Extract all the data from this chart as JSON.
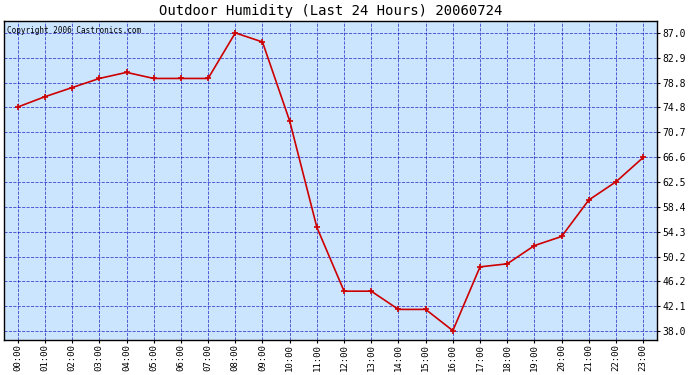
{
  "title": "Outdoor Humidity (Last 24 Hours) 20060724",
  "copyright_text": "Copyright 2006 Castronics.com",
  "x_labels": [
    "00:00",
    "01:00",
    "02:00",
    "03:00",
    "04:00",
    "05:00",
    "06:00",
    "07:00",
    "08:00",
    "09:00",
    "10:00",
    "11:00",
    "12:00",
    "13:00",
    "14:00",
    "15:00",
    "16:00",
    "17:00",
    "18:00",
    "19:00",
    "20:00",
    "21:00",
    "22:00",
    "23:00"
  ],
  "hours": [
    0,
    1,
    2,
    3,
    4,
    5,
    6,
    7,
    8,
    9,
    10,
    11,
    12,
    13,
    14,
    15,
    16,
    17,
    18,
    19,
    20,
    21,
    22,
    23
  ],
  "values": [
    74.8,
    76.5,
    78.0,
    79.5,
    80.5,
    79.5,
    79.5,
    79.5,
    87.0,
    85.5,
    72.5,
    55.0,
    44.5,
    44.5,
    41.5,
    41.5,
    38.0,
    48.5,
    49.0,
    52.0,
    53.5,
    59.5,
    62.5,
    66.5
  ],
  "line_color": "#cc0000",
  "marker_color": "#cc0000",
  "plot_bg_color": "#cce5ff",
  "fig_bg_color": "#ffffff",
  "grid_color": "#0000bb",
  "border_color": "#000000",
  "title_color": "#000000",
  "y_ticks": [
    38.0,
    42.1,
    46.2,
    50.2,
    54.3,
    58.4,
    62.5,
    66.6,
    70.7,
    74.8,
    78.8,
    82.9,
    87.0
  ],
  "ylim": [
    36.5,
    89.0
  ],
  "xlim": [
    -0.5,
    23.5
  ],
  "figwidth": 6.9,
  "figheight": 3.75,
  "dpi": 100
}
